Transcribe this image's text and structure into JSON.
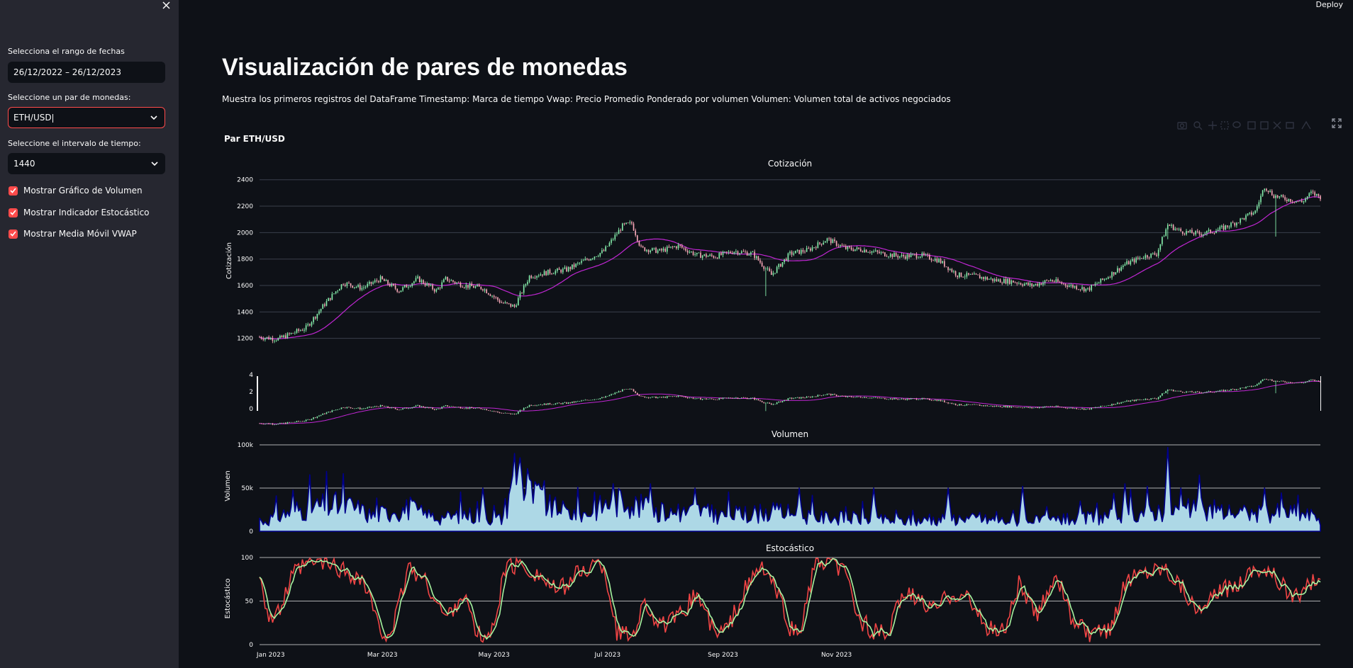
{
  "sidebar": {
    "date_range_label": "Selecciona el rango de fechas",
    "date_range_value": "26/12/2022 – 26/12/2023",
    "pair_label": "Seleccione un par de monedas:",
    "pair_value": "ETH/USD",
    "interval_label": "Seleccione el intervalo de tiempo:",
    "interval_value": "1440",
    "checkboxes": [
      {
        "label": "Mostrar Gráfico de Volumen",
        "checked": true
      },
      {
        "label": "Mostrar Indicador Estocástico",
        "checked": true
      },
      {
        "label": "Mostrar Media Móvil VWAP",
        "checked": true
      }
    ]
  },
  "header": {
    "deploy_label": "Deploy"
  },
  "main": {
    "title": "Visualización de pares de monedas",
    "description": "Muestra los primeros registros del DataFrame Timestamp: Marca de tiempo Vwap: Precio Promedio Ponderado por volumen Volumen: Volumen total de activos negociados",
    "chart_caption": "Par ETH/USD"
  },
  "colors": {
    "accent": "#ff4b4b",
    "increasing": "#86efac",
    "decreasing": "#f9a8b8",
    "vwap": "#c026d3",
    "volume_fill": "#add8e6",
    "volume_line": "#00008b",
    "stoch_k": "#ef4444",
    "stoch_d": "#a7f3a0"
  },
  "chart_data": [
    {
      "type": "candlestick",
      "title": "Cotización",
      "ylabel": "Cotización",
      "ylim": [
        1150,
        2420
      ],
      "yticks": [
        "1200",
        "1400",
        "1600",
        "1800",
        "2000",
        "2200",
        "2400"
      ],
      "x_ticks": [
        "Jan 2023",
        "Mar 2023",
        "May 2023",
        "Jul 2023",
        "Sep 2023",
        "Nov 2023"
      ],
      "x_range": [
        "2022-12-26",
        "2023-12-26"
      ],
      "keypoints": [
        [
          0,
          1210
        ],
        [
          10,
          1195
        ],
        [
          25,
          1280
        ],
        [
          35,
          1460
        ],
        [
          45,
          1620
        ],
        [
          55,
          1580
        ],
        [
          65,
          1650
        ],
        [
          75,
          1560
        ],
        [
          85,
          1650
        ],
        [
          95,
          1560
        ],
        [
          100,
          1650
        ],
        [
          110,
          1600
        ],
        [
          120,
          1580
        ],
        [
          130,
          1470
        ],
        [
          137,
          1440
        ],
        [
          145,
          1670
        ],
        [
          155,
          1700
        ],
        [
          165,
          1720
        ],
        [
          175,
          1790
        ],
        [
          185,
          1860
        ],
        [
          195,
          2050
        ],
        [
          200,
          2070
        ],
        [
          205,
          1880
        ],
        [
          215,
          1860
        ],
        [
          225,
          1900
        ],
        [
          235,
          1830
        ],
        [
          245,
          1820
        ],
        [
          255,
          1860
        ],
        [
          265,
          1840
        ],
        [
          275,
          1680
        ],
        [
          285,
          1840
        ],
        [
          295,
          1870
        ],
        [
          305,
          1950
        ],
        [
          315,
          1880
        ],
        [
          325,
          1870
        ],
        [
          335,
          1840
        ],
        [
          345,
          1820
        ],
        [
          355,
          1830
        ],
        [
          365,
          1790
        ],
        [
          375,
          1680
        ],
        [
          385,
          1670
        ],
        [
          395,
          1640
        ],
        [
          405,
          1630
        ],
        [
          415,
          1600
        ],
        [
          425,
          1640
        ],
        [
          435,
          1600
        ],
        [
          445,
          1570
        ],
        [
          455,
          1660
        ],
        [
          465,
          1760
        ],
        [
          475,
          1820
        ],
        [
          482,
          1840
        ],
        [
          488,
          2060
        ],
        [
          495,
          2010
        ],
        [
          505,
          1990
        ],
        [
          515,
          2020
        ],
        [
          525,
          2080
        ],
        [
          535,
          2160
        ],
        [
          540,
          2350
        ],
        [
          545,
          2280
        ],
        [
          550,
          2260
        ],
        [
          560,
          2230
        ],
        [
          565,
          2300
        ],
        [
          570,
          2270
        ]
      ],
      "series": [
        {
          "name": "Candlestick"
        },
        {
          "name": "VWAP"
        }
      ]
    },
    {
      "type": "candlestick",
      "title": "",
      "yticks": [
        "4",
        "2",
        "0"
      ]
    },
    {
      "type": "area",
      "title": "Volumen",
      "ylabel": "Volumen",
      "ylim": [
        0,
        100000
      ],
      "yticks": [
        "100k",
        "50k",
        "0"
      ],
      "base_keypoints": [
        [
          0,
          10000
        ],
        [
          20,
          25000
        ],
        [
          40,
          30000
        ],
        [
          50,
          28000
        ],
        [
          60,
          18000
        ],
        [
          70,
          22000
        ],
        [
          80,
          26000
        ],
        [
          90,
          18000
        ],
        [
          100,
          15000
        ],
        [
          110,
          20000
        ],
        [
          120,
          16000
        ],
        [
          130,
          14000
        ],
        [
          138,
          65000
        ],
        [
          145,
          45000
        ],
        [
          155,
          28000
        ],
        [
          165,
          22000
        ],
        [
          175,
          20000
        ],
        [
          185,
          30000
        ],
        [
          195,
          35000
        ],
        [
          205,
          28000
        ],
        [
          215,
          22000
        ],
        [
          225,
          20000
        ],
        [
          235,
          25000
        ],
        [
          245,
          18000
        ],
        [
          260,
          20000
        ],
        [
          280,
          22000
        ],
        [
          300,
          16000
        ],
        [
          320,
          15000
        ],
        [
          340,
          12000
        ],
        [
          355,
          12000
        ],
        [
          370,
          15000
        ],
        [
          385,
          14000
        ],
        [
          400,
          12000
        ],
        [
          420,
          12000
        ],
        [
          440,
          14000
        ],
        [
          460,
          18000
        ],
        [
          475,
          22000
        ],
        [
          490,
          25000
        ],
        [
          505,
          24000
        ],
        [
          520,
          22000
        ],
        [
          535,
          20000
        ],
        [
          550,
          22000
        ],
        [
          560,
          20000
        ],
        [
          570,
          15000
        ]
      ],
      "spikes": [
        [
          120,
          50000
        ],
        [
          137,
          90000
        ],
        [
          140,
          85000
        ],
        [
          150,
          55000
        ],
        [
          190,
          55000
        ],
        [
          210,
          55000
        ],
        [
          290,
          50000
        ],
        [
          330,
          50000
        ],
        [
          370,
          50000
        ],
        [
          410,
          52000
        ],
        [
          465,
          55000
        ],
        [
          488,
          97000
        ],
        [
          505,
          65000
        ],
        [
          540,
          50000
        ]
      ]
    },
    {
      "type": "line",
      "title": "Estocástico",
      "ylabel": "Estocástico",
      "ylim": [
        0,
        100
      ],
      "yticks": [
        "100",
        "50",
        "0"
      ],
      "k_keypoints": [
        [
          0,
          85
        ],
        [
          5,
          30
        ],
        [
          10,
          35
        ],
        [
          18,
          80
        ],
        [
          25,
          92
        ],
        [
          35,
          95
        ],
        [
          45,
          85
        ],
        [
          55,
          75
        ],
        [
          60,
          50
        ],
        [
          65,
          10
        ],
        [
          72,
          20
        ],
        [
          80,
          90
        ],
        [
          90,
          70
        ],
        [
          100,
          30
        ],
        [
          110,
          60
        ],
        [
          115,
          20
        ],
        [
          120,
          5
        ],
        [
          125,
          15
        ],
        [
          132,
          88
        ],
        [
          140,
          92
        ],
        [
          150,
          80
        ],
        [
          160,
          60
        ],
        [
          170,
          80
        ],
        [
          180,
          92
        ],
        [
          185,
          90
        ],
        [
          192,
          15
        ],
        [
          200,
          10
        ],
        [
          207,
          50
        ],
        [
          215,
          20
        ],
        [
          225,
          30
        ],
        [
          235,
          60
        ],
        [
          245,
          10
        ],
        [
          252,
          20
        ],
        [
          260,
          60
        ],
        [
          270,
          90
        ],
        [
          278,
          60
        ],
        [
          285,
          20
        ],
        [
          290,
          10
        ],
        [
          298,
          90
        ],
        [
          308,
          95
        ],
        [
          315,
          80
        ],
        [
          322,
          30
        ],
        [
          330,
          15
        ],
        [
          338,
          10
        ],
        [
          345,
          60
        ],
        [
          355,
          50
        ],
        [
          362,
          40
        ],
        [
          372,
          60
        ],
        [
          380,
          55
        ],
        [
          390,
          20
        ],
        [
          400,
          15
        ],
        [
          408,
          70
        ],
        [
          418,
          30
        ],
        [
          428,
          85
        ],
        [
          436,
          30
        ],
        [
          446,
          10
        ],
        [
          456,
          15
        ],
        [
          466,
          75
        ],
        [
          476,
          85
        ],
        [
          486,
          90
        ],
        [
          495,
          70
        ],
        [
          505,
          35
        ],
        [
          515,
          60
        ],
        [
          525,
          70
        ],
        [
          535,
          90
        ],
        [
          545,
          80
        ],
        [
          552,
          60
        ],
        [
          560,
          55
        ],
        [
          567,
          78
        ],
        [
          570,
          70
        ]
      ]
    }
  ]
}
